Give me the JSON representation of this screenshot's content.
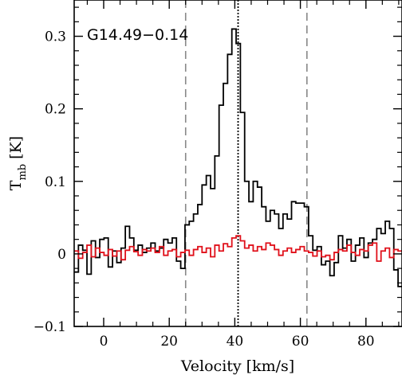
{
  "chart_data": {
    "type": "line",
    "title": "G14.49−0.14",
    "xlabel": "Velocity [km/s]",
    "ylabel_main": "T",
    "ylabel_sub": "mb",
    "ylabel_unit": "[K]",
    "xlim": [
      -9,
      91
    ],
    "ylim": [
      -0.1,
      0.35
    ],
    "x_ticks": [
      0,
      20,
      40,
      60,
      80
    ],
    "x_tick_labels": [
      "0",
      "20",
      "40",
      "60",
      "80"
    ],
    "y_ticks": [
      -0.1,
      0,
      0.1,
      0.2,
      0.3
    ],
    "y_tick_labels": [
      "−0.1",
      "0",
      "0.1",
      "0.2",
      "0.3"
    ],
    "vlines": [
      {
        "x": 25,
        "style": "dashed",
        "color": "#888888"
      },
      {
        "x": 41,
        "style": "dotted",
        "color": "#000000"
      },
      {
        "x": 62,
        "style": "dashed",
        "color": "#888888"
      }
    ],
    "series": [
      {
        "color": "#000000",
        "step": 1.3,
        "x": [
          -9.0,
          -7.7,
          -6.4,
          -5.1,
          -3.8,
          -2.5,
          -1.2,
          0.1,
          1.4,
          2.7,
          4.0,
          5.3,
          6.6,
          7.9,
          9.2,
          10.5,
          11.8,
          13.1,
          14.4,
          15.7,
          17.0,
          18.3,
          19.6,
          20.9,
          22.2,
          23.5,
          24.8,
          26.1,
          27.4,
          28.7,
          30.0,
          31.3,
          32.6,
          33.9,
          35.2,
          36.5,
          37.8,
          39.1,
          40.4,
          41.7,
          43.0,
          44.3,
          45.6,
          46.9,
          48.2,
          49.5,
          50.8,
          52.1,
          53.4,
          54.7,
          56.0,
          57.3,
          58.6,
          59.9,
          61.2,
          62.5,
          63.8,
          65.1,
          66.4,
          67.7,
          69.0,
          70.3,
          71.6,
          72.9,
          74.2,
          75.5,
          76.8,
          78.1,
          79.4,
          80.7,
          82.0,
          83.3,
          84.6,
          85.9,
          87.2,
          88.5,
          89.8
        ],
        "y": [
          -0.025,
          0.012,
          0.005,
          -0.028,
          0.018,
          -0.005,
          0.02,
          0.022,
          -0.018,
          0.004,
          -0.012,
          0.008,
          0.038,
          0.022,
          0.005,
          0.012,
          0.002,
          0.008,
          0.015,
          0.004,
          0.008,
          0.02,
          0.015,
          0.022,
          -0.01,
          -0.02,
          0.04,
          0.045,
          0.055,
          0.068,
          0.095,
          0.108,
          0.09,
          0.135,
          0.205,
          0.235,
          0.275,
          0.31,
          0.29,
          0.195,
          0.1,
          0.072,
          0.1,
          0.092,
          0.065,
          0.045,
          0.06,
          0.055,
          0.035,
          0.055,
          0.048,
          0.072,
          0.07,
          0.07,
          0.065,
          0.025,
          0.005,
          0.01,
          -0.015,
          -0.01,
          -0.03,
          -0.012,
          0.025,
          0.008,
          0.02,
          -0.01,
          0.012,
          0.022,
          -0.005,
          0.015,
          0.02,
          0.035,
          0.028,
          0.045,
          0.035,
          -0.022,
          -0.045
        ]
      },
      {
        "color": "#e0101a",
        "step": 1.3,
        "x": [
          -9.0,
          -7.7,
          -6.4,
          -5.1,
          -3.8,
          -2.5,
          -1.2,
          0.1,
          1.4,
          2.7,
          4.0,
          5.3,
          6.6,
          7.9,
          9.2,
          10.5,
          11.8,
          13.1,
          14.4,
          15.7,
          17.0,
          18.3,
          19.6,
          20.9,
          22.2,
          23.5,
          24.8,
          26.1,
          27.4,
          28.7,
          30.0,
          31.3,
          32.6,
          33.9,
          35.2,
          36.5,
          37.8,
          39.1,
          40.4,
          41.7,
          43.0,
          44.3,
          45.6,
          46.9,
          48.2,
          49.5,
          50.8,
          52.1,
          53.4,
          54.7,
          56.0,
          57.3,
          58.6,
          59.9,
          61.2,
          62.5,
          63.8,
          65.1,
          66.4,
          67.7,
          69.0,
          70.3,
          71.6,
          72.9,
          74.2,
          75.5,
          76.8,
          78.1,
          79.4,
          80.7,
          82.0,
          83.3,
          84.6,
          85.9,
          87.2,
          88.5,
          89.8
        ],
        "y": [
          0.004,
          -0.006,
          0.002,
          0.012,
          -0.004,
          0.008,
          0.002,
          -0.002,
          0.006,
          -0.003,
          0.004,
          -0.008,
          0.005,
          0.01,
          0.003,
          -0.002,
          0.006,
          0.004,
          0.008,
          0.002,
          0.01,
          -0.002,
          0.004,
          0.006,
          -0.004,
          0.002,
          0.005,
          -0.002,
          0.006,
          0.01,
          0.002,
          0.008,
          -0.004,
          0.012,
          0.004,
          0.014,
          0.01,
          0.022,
          0.025,
          0.018,
          0.008,
          0.012,
          0.004,
          0.01,
          0.006,
          0.015,
          0.012,
          0.006,
          -0.002,
          0.004,
          0.008,
          0.002,
          0.006,
          0.01,
          0.004,
          0.002,
          -0.003,
          0.004,
          -0.004,
          -0.002,
          -0.008,
          0.002,
          0.006,
          0.004,
          0.012,
          0.002,
          -0.002,
          0.006,
          0.004,
          0.012,
          0.015,
          -0.01,
          0.004,
          0.008,
          -0.005,
          0.006,
          0.004
        ]
      }
    ]
  }
}
